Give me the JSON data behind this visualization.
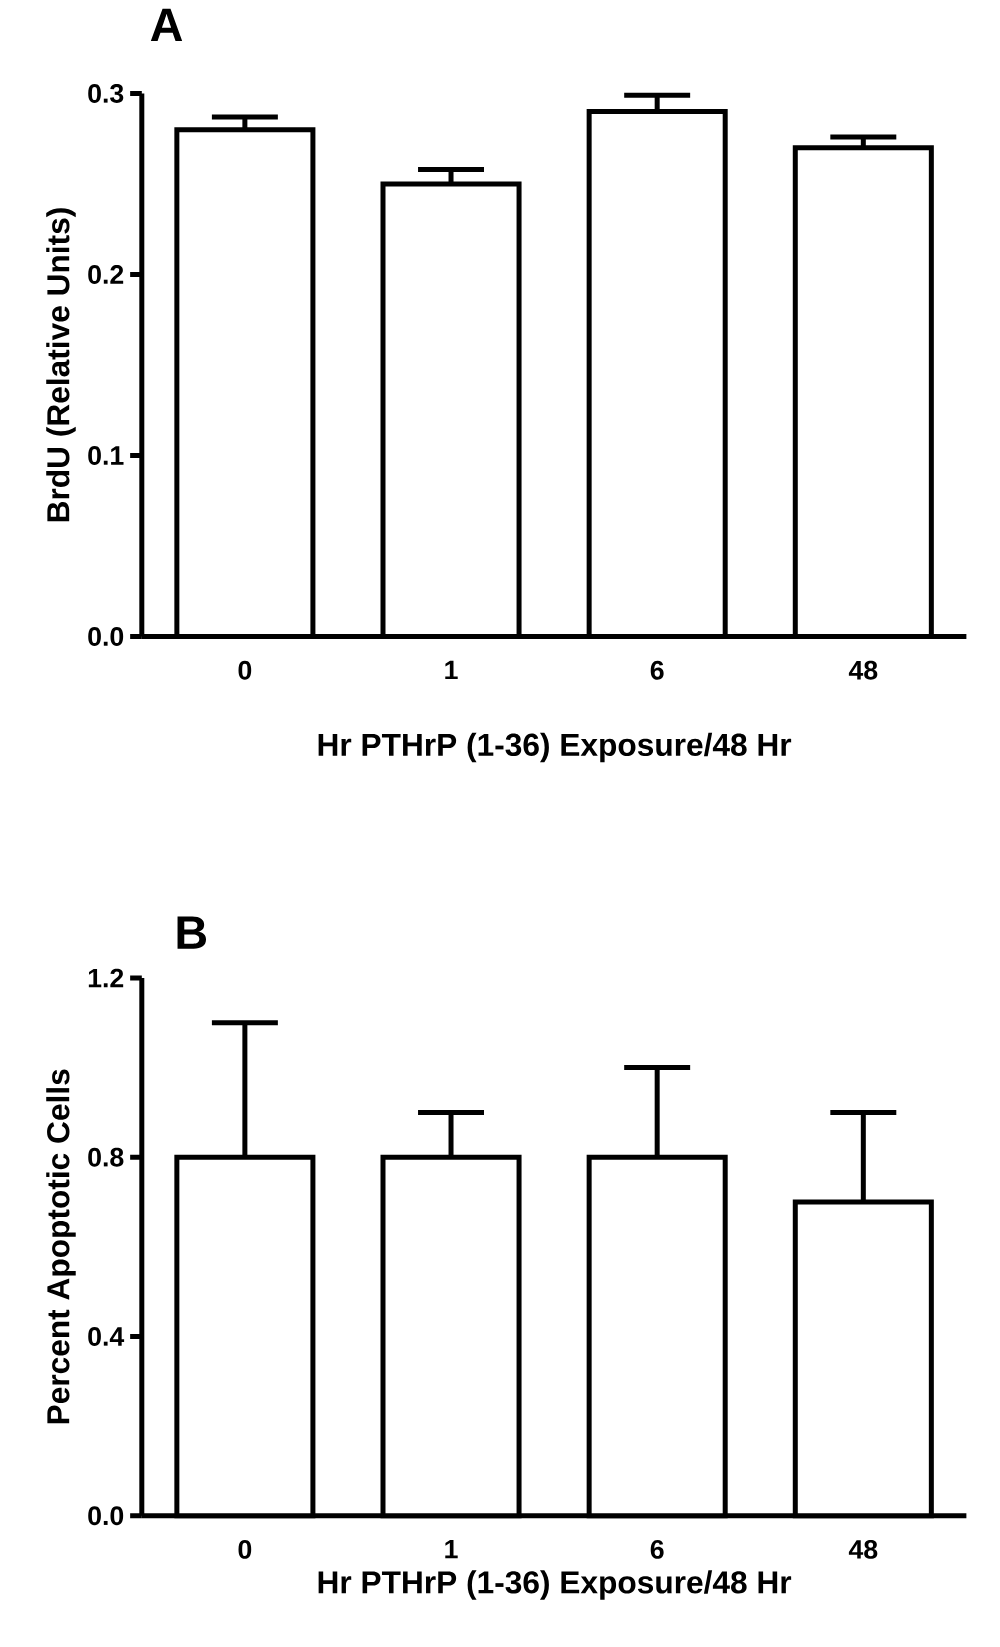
{
  "chart_data": [
    {
      "type": "bar",
      "title": "A",
      "xlabel": "Hr PTHrP (1-36) Exposure/48 Hr",
      "ylabel": "BrdU (Relative Units)",
      "categories": [
        "0",
        "1",
        "6",
        "48"
      ],
      "values": [
        0.28,
        0.25,
        0.29,
        0.27
      ],
      "errors": [
        [
          0.28,
          0.287
        ],
        [
          0.25,
          0.258
        ],
        [
          0.29,
          0.299
        ],
        [
          0.27,
          0.276
        ]
      ],
      "color": "#ffffff",
      "ylim": [
        0,
        0.3
      ],
      "yticks": [
        {
          "value": 0,
          "label": "0.0"
        },
        0.1,
        0.2,
        0.3
      ]
    },
    {
      "type": "bar",
      "title": "B",
      "xlabel": "Hr PTHrP (1-36) Exposure/48 Hr",
      "ylabel": "Percent Apoptotic Cells",
      "categories": [
        "0",
        "1",
        "6",
        "48"
      ],
      "values": [
        0.8,
        0.8,
        0.8,
        0.7
      ],
      "errors": [
        [
          0.8,
          1.1
        ],
        [
          0.8,
          0.9
        ],
        [
          0.8,
          1.0
        ],
        [
          0.7,
          0.9
        ]
      ],
      "color": "#ffffff",
      "ylim": [
        0,
        1.2
      ],
      "yticks": [
        {
          "value": 0,
          "label": "0.0"
        },
        0.4,
        0.8,
        1.2
      ]
    }
  ]
}
